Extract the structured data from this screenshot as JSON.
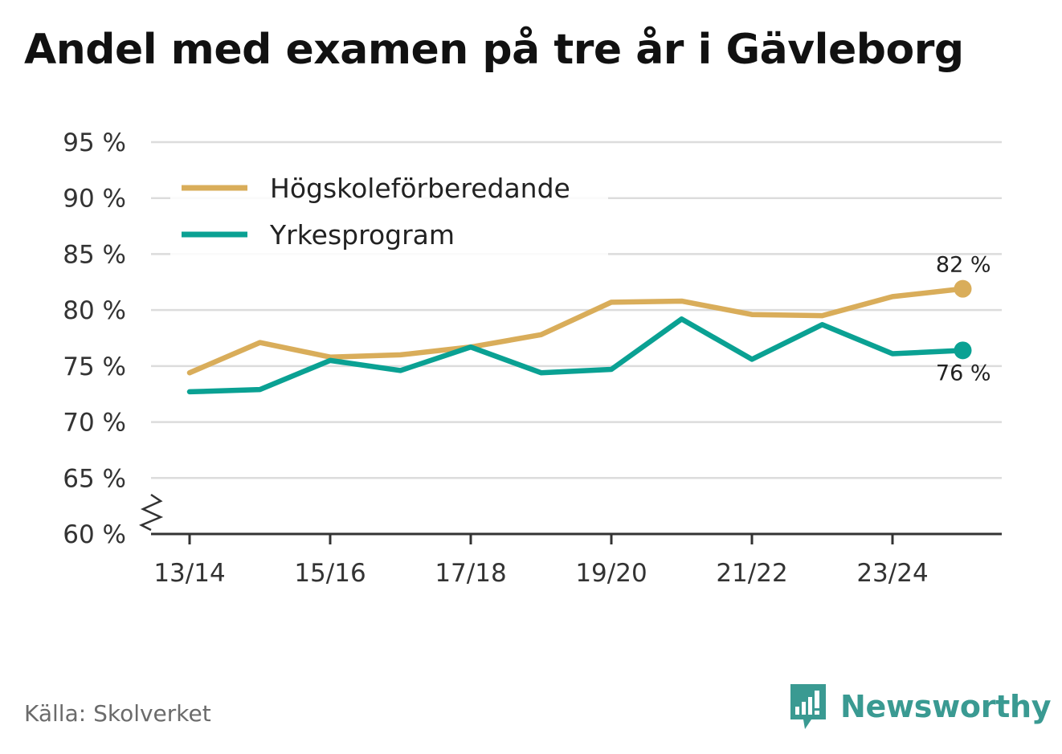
{
  "title": "Andel med examen på tre år i Gävleborg",
  "source": "Källa: Skolverket",
  "brand": "Newsworthy",
  "colors": {
    "series1": "#d9ad5a",
    "series2": "#0aa193",
    "brand": "#3a9a92",
    "grid": "#dcdcdc",
    "axis": "#333333"
  },
  "chart_data": {
    "type": "line",
    "x": [
      "13/14",
      "14/15",
      "15/16",
      "16/17",
      "17/18",
      "18/19",
      "19/20",
      "20/21",
      "21/22",
      "22/23",
      "23/24",
      "24/25"
    ],
    "x_tick_labels": [
      "13/14",
      "",
      "15/16",
      "",
      "17/18",
      "",
      "19/20",
      "",
      "21/22",
      "",
      "23/24",
      ""
    ],
    "y_ticks": [
      60,
      65,
      70,
      75,
      80,
      85,
      90,
      95
    ],
    "y_tick_labels": [
      "60 %",
      "65 %",
      "70 %",
      "75 %",
      "80 %",
      "85 %",
      "90 %",
      "95 %"
    ],
    "ylim": [
      60,
      95
    ],
    "y_axis_break": true,
    "grid": true,
    "legend_position": "top-left",
    "series": [
      {
        "name": "Högskoleförberedande",
        "color": "#d9ad5a",
        "values": [
          74.4,
          77.1,
          75.8,
          76.0,
          76.7,
          77.8,
          80.7,
          80.8,
          79.6,
          79.5,
          81.2,
          81.9
        ],
        "end_label": "82 %"
      },
      {
        "name": "Yrkesprogram",
        "color": "#0aa193",
        "values": [
          72.7,
          72.9,
          75.5,
          74.6,
          76.7,
          74.4,
          74.7,
          79.2,
          75.6,
          78.7,
          76.1,
          76.4
        ],
        "end_label": "76 %"
      }
    ]
  }
}
